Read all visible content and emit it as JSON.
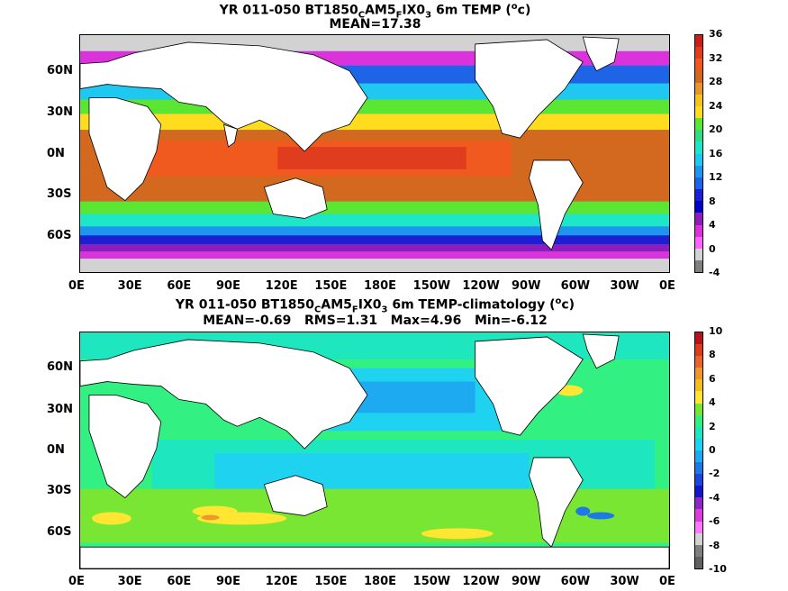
{
  "top_panel": {
    "title_prefix": "YR 011-050 BT1850",
    "title_sub1": "C",
    "title_mid": "AM5",
    "title_sub2": "F",
    "title_mid2": "IX0",
    "title_sub3": "3",
    "title_suffix": " 6m TEMP (",
    "title_sup": "o",
    "title_end": "c)",
    "stats": "MEAN=17.38",
    "colorbar_ticks": [
      "36",
      "32",
      "28",
      "24",
      "20",
      "16",
      "12",
      "8",
      "4",
      "0",
      "-4"
    ],
    "colorbar_colors": [
      "#c81e1e",
      "#e03c1e",
      "#f05a1e",
      "#d2691e",
      "#e6962d",
      "#f5c31e",
      "#ffdc1e",
      "#5ae632",
      "#32dc82",
      "#1ee6c8",
      "#1ec8f0",
      "#1e96f0",
      "#1e64e6",
      "#1e1ed2",
      "#0000c8",
      "#8c1ebe",
      "#dc32dc",
      "#ff64ff",
      "#d2d2d2",
      "#808080"
    ]
  },
  "bottom_panel": {
    "title_prefix": "YR 011-050 BT1850",
    "title_sub1": "C",
    "title_mid": "AM5",
    "title_sub2": "F",
    "title_mid2": "IX0",
    "title_sub3": "3",
    "title_suffix": " 6m TEMP-climatology (",
    "title_sup": "o",
    "title_end": "c)",
    "stats": "MEAN=-0.69   RMS=1.31   Max=4.96   Min=-6.12",
    "colorbar_ticks": [
      "10",
      "8",
      "6",
      "4",
      "2",
      "0",
      "-2",
      "-4",
      "-6",
      "-8",
      "-10"
    ],
    "colorbar_colors": [
      "#b4141e",
      "#dc3c1e",
      "#e6642d",
      "#f0962d",
      "#f0be1e",
      "#ffe632",
      "#78e632",
      "#32f082",
      "#1ee6be",
      "#1ed2f0",
      "#1eaaf0",
      "#1e78e6",
      "#1e46dc",
      "#1414c8",
      "#8c28c8",
      "#dc3cdc",
      "#ff78ff",
      "#d2d2d2",
      "#808080",
      "#606060"
    ]
  },
  "axes": {
    "y_ticks": [
      "60N",
      "30N",
      "0N",
      "30S",
      "60S"
    ],
    "x_ticks": [
      "0E",
      "30E",
      "60E",
      "90E",
      "120E",
      "150E",
      "180E",
      "150W",
      "120W",
      "90W",
      "60W",
      "30W",
      "0E"
    ]
  },
  "chart_data": [
    {
      "type": "heatmap",
      "title": "YR 011-050 BT1850CAM5FIX03 6m TEMP (oc)",
      "subtitle": "MEAN=17.38",
      "x_ticks": [
        "0E",
        "30E",
        "60E",
        "90E",
        "120E",
        "150E",
        "180E",
        "150W",
        "120W",
        "90W",
        "60W",
        "30W",
        "0E"
      ],
      "y_ticks": [
        "60N",
        "30N",
        "0N",
        "30S",
        "60S"
      ],
      "colorbar_range": [
        -4,
        36
      ],
      "colorbar_ticks": [
        -4,
        0,
        4,
        8,
        12,
        16,
        20,
        24,
        28,
        32,
        36
      ]
    },
    {
      "type": "heatmap",
      "title": "YR 011-050 BT1850CAM5FIX03 6m TEMP-climatology (oc)",
      "subtitle": "MEAN=-0.69   RMS=1.31   Max=4.96   Min=-6.12",
      "x_ticks": [
        "0E",
        "30E",
        "60E",
        "90E",
        "120E",
        "150E",
        "180E",
        "150W",
        "120W",
        "90W",
        "60W",
        "30W",
        "0E"
      ],
      "y_ticks": [
        "60N",
        "30N",
        "0N",
        "30S",
        "60S"
      ],
      "colorbar_range": [
        -10,
        10
      ],
      "colorbar_ticks": [
        -10,
        -8,
        -6,
        -4,
        -2,
        0,
        2,
        4,
        6,
        8,
        10
      ]
    }
  ]
}
